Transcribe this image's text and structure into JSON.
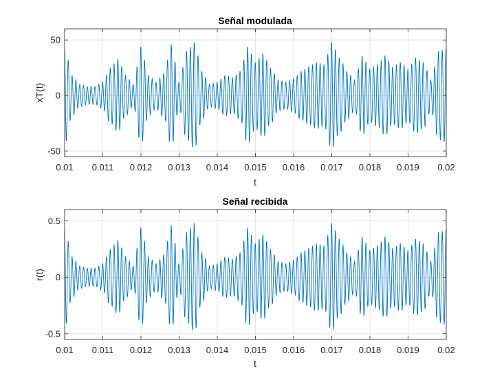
{
  "chart_data": [
    {
      "type": "line",
      "title": "Señal modulada",
      "xlabel": "t",
      "ylabel": "xT(t)",
      "xlim": [
        0.01,
        0.02
      ],
      "ylim": [
        -55,
        60
      ],
      "xticks": [
        0.01,
        0.011,
        0.012,
        0.013,
        0.014,
        0.015,
        0.016,
        0.017,
        0.018,
        0.019,
        0.02
      ],
      "xticklabels": [
        "0.01",
        "0.011",
        "0.012",
        "0.013",
        "0.014",
        "0.015",
        "0.016",
        "0.017",
        "0.018",
        "0.019",
        "0.02"
      ],
      "yticks": [
        -50,
        0,
        50
      ],
      "yticklabels": [
        "-50",
        "0",
        "50"
      ],
      "grid": true,
      "color": "#0072BD",
      "carrier_frequency_hz": 10000,
      "envelope": {
        "t": [
          0.01,
          0.0102,
          0.0104,
          0.0106,
          0.0108,
          0.011,
          0.0112,
          0.0114,
          0.0116,
          0.0118,
          0.012,
          0.0122,
          0.0124,
          0.0126,
          0.0128,
          0.013,
          0.0132,
          0.0134,
          0.0136,
          0.0138,
          0.014,
          0.0142,
          0.0144,
          0.0146,
          0.0148,
          0.015,
          0.0152,
          0.0154,
          0.0156,
          0.0158,
          0.016,
          0.0162,
          0.0164,
          0.0166,
          0.0168,
          0.017,
          0.0172,
          0.0174,
          0.0176,
          0.0178,
          0.018,
          0.0182,
          0.0184,
          0.0186,
          0.0188,
          0.019,
          0.0192,
          0.0194,
          0.0196,
          0.0198,
          0.02
        ],
        "values": [
          44,
          18,
          10,
          8,
          8,
          12,
          25,
          33,
          18,
          10,
          44,
          18,
          12,
          20,
          46,
          12,
          40,
          48,
          22,
          10,
          12,
          18,
          16,
          22,
          44,
          30,
          38,
          25,
          14,
          12,
          15,
          22,
          26,
          30,
          28,
          48,
          34,
          22,
          14,
          36,
          24,
          28,
          36,
          26,
          30,
          24,
          34,
          30,
          14,
          40,
          42
        ]
      }
    },
    {
      "type": "line",
      "title": "Señal recibida",
      "xlabel": "t",
      "ylabel": "r(t)",
      "xlim": [
        0.01,
        0.02
      ],
      "ylim": [
        -0.55,
        0.6
      ],
      "xticks": [
        0.01,
        0.011,
        0.012,
        0.013,
        0.014,
        0.015,
        0.016,
        0.017,
        0.018,
        0.019,
        0.02
      ],
      "xticklabels": [
        "0.01",
        "0.011",
        "0.012",
        "0.013",
        "0.014",
        "0.015",
        "0.016",
        "0.017",
        "0.018",
        "0.019",
        "0.02"
      ],
      "yticks": [
        -0.5,
        0,
        0.5
      ],
      "yticklabels": [
        "-0.5",
        "0",
        "0.5"
      ],
      "grid": true,
      "color": "#0072BD",
      "carrier_frequency_hz": 10000,
      "envelope": {
        "t": [
          0.01,
          0.0102,
          0.0104,
          0.0106,
          0.0108,
          0.011,
          0.0112,
          0.0114,
          0.0116,
          0.0118,
          0.012,
          0.0122,
          0.0124,
          0.0126,
          0.0128,
          0.013,
          0.0132,
          0.0134,
          0.0136,
          0.0138,
          0.014,
          0.0142,
          0.0144,
          0.0146,
          0.0148,
          0.015,
          0.0152,
          0.0154,
          0.0156,
          0.0158,
          0.016,
          0.0162,
          0.0164,
          0.0166,
          0.0168,
          0.017,
          0.0172,
          0.0174,
          0.0176,
          0.0178,
          0.018,
          0.0182,
          0.0184,
          0.0186,
          0.0188,
          0.019,
          0.0192,
          0.0194,
          0.0196,
          0.0198,
          0.02
        ],
        "values": [
          0.44,
          0.18,
          0.1,
          0.08,
          0.08,
          0.12,
          0.25,
          0.33,
          0.18,
          0.1,
          0.44,
          0.18,
          0.12,
          0.2,
          0.46,
          0.12,
          0.4,
          0.48,
          0.22,
          0.1,
          0.12,
          0.18,
          0.16,
          0.22,
          0.44,
          0.3,
          0.38,
          0.25,
          0.14,
          0.12,
          0.15,
          0.22,
          0.26,
          0.3,
          0.28,
          0.48,
          0.34,
          0.22,
          0.14,
          0.36,
          0.24,
          0.28,
          0.36,
          0.26,
          0.3,
          0.24,
          0.34,
          0.3,
          0.14,
          0.4,
          0.42
        ]
      }
    }
  ]
}
